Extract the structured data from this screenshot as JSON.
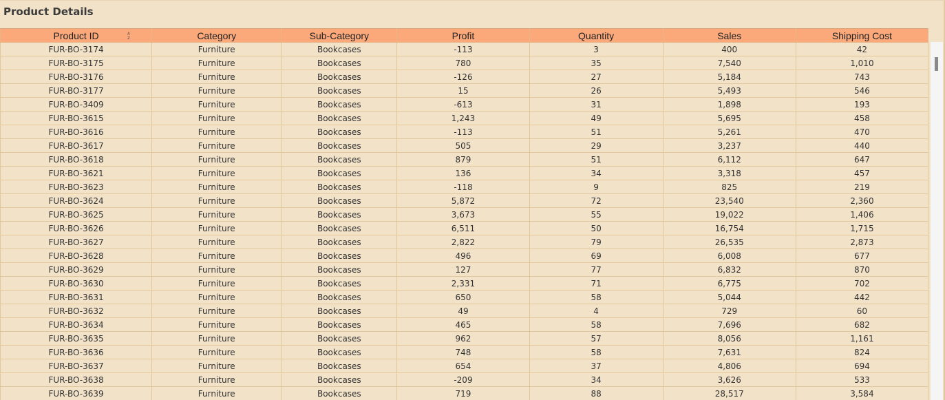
{
  "title": "Product Details",
  "columns": [
    "Product ID",
    "Category",
    "Sub-Category",
    "Profit",
    "Quantity",
    "Sales",
    "Shipping Cost"
  ],
  "sort_icon": "sort-az-icon",
  "colors": {
    "header_bg": "#fba97a",
    "row_bg": "#f2e2c8",
    "border": "#e3c79c"
  },
  "rows": [
    [
      "FUR-BO-3174",
      "Furniture",
      "Bookcases",
      "-113",
      "3",
      "400",
      "42"
    ],
    [
      "FUR-BO-3175",
      "Furniture",
      "Bookcases",
      "780",
      "35",
      "7,540",
      "1,010"
    ],
    [
      "FUR-BO-3176",
      "Furniture",
      "Bookcases",
      "-126",
      "27",
      "5,184",
      "743"
    ],
    [
      "FUR-BO-3177",
      "Furniture",
      "Bookcases",
      "15",
      "26",
      "5,493",
      "546"
    ],
    [
      "FUR-BO-3409",
      "Furniture",
      "Bookcases",
      "-613",
      "31",
      "1,898",
      "193"
    ],
    [
      "FUR-BO-3615",
      "Furniture",
      "Bookcases",
      "1,243",
      "49",
      "5,695",
      "458"
    ],
    [
      "FUR-BO-3616",
      "Furniture",
      "Bookcases",
      "-113",
      "51",
      "5,261",
      "470"
    ],
    [
      "FUR-BO-3617",
      "Furniture",
      "Bookcases",
      "505",
      "29",
      "3,237",
      "440"
    ],
    [
      "FUR-BO-3618",
      "Furniture",
      "Bookcases",
      "879",
      "51",
      "6,112",
      "647"
    ],
    [
      "FUR-BO-3621",
      "Furniture",
      "Bookcases",
      "136",
      "34",
      "3,318",
      "457"
    ],
    [
      "FUR-BO-3623",
      "Furniture",
      "Bookcases",
      "-118",
      "9",
      "825",
      "219"
    ],
    [
      "FUR-BO-3624",
      "Furniture",
      "Bookcases",
      "5,872",
      "72",
      "23,540",
      "2,360"
    ],
    [
      "FUR-BO-3625",
      "Furniture",
      "Bookcases",
      "3,673",
      "55",
      "19,022",
      "1,406"
    ],
    [
      "FUR-BO-3626",
      "Furniture",
      "Bookcases",
      "6,511",
      "50",
      "16,754",
      "1,715"
    ],
    [
      "FUR-BO-3627",
      "Furniture",
      "Bookcases",
      "2,822",
      "79",
      "26,535",
      "2,873"
    ],
    [
      "FUR-BO-3628",
      "Furniture",
      "Bookcases",
      "496",
      "69",
      "6,008",
      "677"
    ],
    [
      "FUR-BO-3629",
      "Furniture",
      "Bookcases",
      "127",
      "77",
      "6,832",
      "870"
    ],
    [
      "FUR-BO-3630",
      "Furniture",
      "Bookcases",
      "2,331",
      "71",
      "6,775",
      "702"
    ],
    [
      "FUR-BO-3631",
      "Furniture",
      "Bookcases",
      "650",
      "58",
      "5,044",
      "442"
    ],
    [
      "FUR-BO-3632",
      "Furniture",
      "Bookcases",
      "49",
      "4",
      "729",
      "60"
    ],
    [
      "FUR-BO-3634",
      "Furniture",
      "Bookcases",
      "465",
      "58",
      "7,696",
      "682"
    ],
    [
      "FUR-BO-3635",
      "Furniture",
      "Bookcases",
      "962",
      "57",
      "8,056",
      "1,161"
    ],
    [
      "FUR-BO-3636",
      "Furniture",
      "Bookcases",
      "748",
      "58",
      "7,631",
      "824"
    ],
    [
      "FUR-BO-3637",
      "Furniture",
      "Bookcases",
      "654",
      "37",
      "4,806",
      "694"
    ],
    [
      "FUR-BO-3638",
      "Furniture",
      "Bookcases",
      "-209",
      "34",
      "3,626",
      "533"
    ],
    [
      "FUR-BO-3639",
      "Furniture",
      "Bookcases",
      "719",
      "88",
      "28,517",
      "3,584"
    ]
  ]
}
